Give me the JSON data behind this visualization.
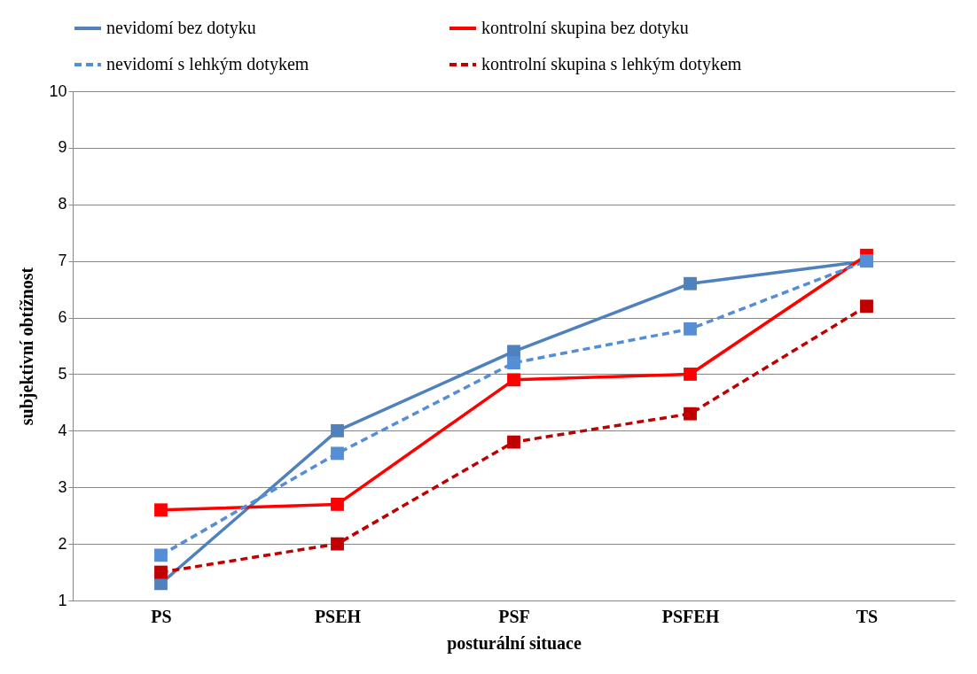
{
  "chart_data": {
    "type": "line",
    "xlabel": "posturální situace",
    "ylabel": "subjektivní obtížnost",
    "categories": [
      "PS",
      "PSEH",
      "PSF",
      "PSFEH",
      "TS"
    ],
    "ylim": [
      1,
      10
    ],
    "yticks": [
      1,
      2,
      3,
      4,
      5,
      6,
      7,
      8,
      9,
      10
    ],
    "grid": "y",
    "legend": "top",
    "marker": "square",
    "series": [
      {
        "name": "nevidomí bez dotyku",
        "color": "#4f81bd",
        "line_style": "solid",
        "values": [
          1.3,
          4.0,
          5.4,
          6.6,
          7.0
        ]
      },
      {
        "name": "kontrolní skupina bez dotyku",
        "color": "#ff0000",
        "line_style": "solid",
        "values": [
          2.6,
          2.7,
          4.9,
          5.0,
          7.1
        ]
      },
      {
        "name": "nevidomí s lehkým dotykem",
        "color": "#558ed5",
        "line_style": "dashed",
        "values": [
          1.8,
          3.6,
          5.2,
          5.8,
          7.0
        ]
      },
      {
        "name": "kontrolní skupina s lehkým dotykem",
        "color": "#c00000",
        "line_style": "dashed",
        "values": [
          1.5,
          2.0,
          3.8,
          4.3,
          6.2
        ]
      }
    ]
  }
}
